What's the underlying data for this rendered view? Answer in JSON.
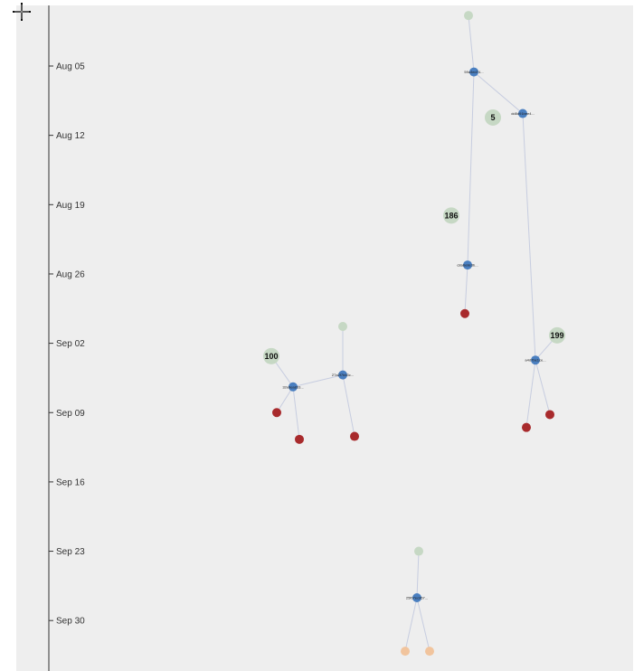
{
  "axis": {
    "ticks": [
      {
        "label": "Aug 05",
        "day": 0
      },
      {
        "label": "Aug 12",
        "day": 7
      },
      {
        "label": "Aug 19",
        "day": 14
      },
      {
        "label": "Aug 26",
        "day": 21
      },
      {
        "label": "Sep 02",
        "day": 28
      },
      {
        "label": "Sep 09",
        "day": 35
      },
      {
        "label": "Sep 16",
        "day": 42
      },
      {
        "label": "Sep 23",
        "day": 49
      },
      {
        "label": "Sep 30",
        "day": 56
      }
    ]
  },
  "colors": {
    "root": "#c6d8c4",
    "commit": "#4a7fc0",
    "terminal_red": "#a82a2c",
    "terminal_orange": "#f1c49d",
    "edge": "#c7cde0",
    "count_bubble": "#c6d8c4",
    "axis": "#333333",
    "panel": "#eeeeee"
  },
  "nodes": [
    {
      "id": "n1",
      "kind": "root",
      "day": -5.1
    },
    {
      "id": "n2",
      "kind": "commit",
      "day": 0.6,
      "label": "59a3ed74..."
    },
    {
      "id": "n3",
      "kind": "commit",
      "day": 4.8,
      "label": "dd8d91bee4..."
    },
    {
      "id": "n4",
      "kind": "count",
      "day": 5.2,
      "label": "5"
    },
    {
      "id": "n5",
      "kind": "count",
      "day": 15.1,
      "label": "186"
    },
    {
      "id": "n6",
      "kind": "commit",
      "day": 20.1,
      "label": "c8a6e8e3b..."
    },
    {
      "id": "n7",
      "kind": "terminal_red",
      "day": 25.0
    },
    {
      "id": "n8",
      "kind": "root",
      "day": 26.3
    },
    {
      "id": "n9",
      "kind": "count",
      "day": 27.2,
      "label": "199"
    },
    {
      "id": "n10",
      "kind": "count",
      "day": 29.3,
      "label": "100"
    },
    {
      "id": "n11",
      "kind": "commit",
      "day": 29.7,
      "label": "a4d7be1ce..."
    },
    {
      "id": "n12",
      "kind": "commit",
      "day": 31.2,
      "label": "27a2f7b63c..."
    },
    {
      "id": "n13",
      "kind": "commit",
      "day": 32.4,
      "label": "32e8ea833..."
    },
    {
      "id": "n14",
      "kind": "terminal_red",
      "day": 35.0
    },
    {
      "id": "n15",
      "kind": "terminal_red",
      "day": 35.2
    },
    {
      "id": "n16",
      "kind": "terminal_red",
      "day": 36.5
    },
    {
      "id": "n17",
      "kind": "terminal_red",
      "day": 37.4
    },
    {
      "id": "n18",
      "kind": "terminal_red",
      "day": 37.7
    },
    {
      "id": "n19",
      "kind": "root",
      "day": 49.0
    },
    {
      "id": "n20",
      "kind": "commit",
      "day": 53.7,
      "label": "25f07ecd67..."
    },
    {
      "id": "n21",
      "kind": "terminal_orange",
      "day": 59.1
    },
    {
      "id": "n22",
      "kind": "terminal_orange",
      "day": 59.1
    }
  ],
  "edges": [
    [
      "n1",
      "n2"
    ],
    [
      "n2",
      "n3"
    ],
    [
      "n2",
      "n6"
    ],
    [
      "n6",
      "n7"
    ],
    [
      "n3",
      "n11"
    ],
    [
      "n9",
      "n11"
    ],
    [
      "n11",
      "n16"
    ],
    [
      "n11",
      "n15"
    ],
    [
      "n8",
      "n12"
    ],
    [
      "n12",
      "n13"
    ],
    [
      "n10",
      "n13"
    ],
    [
      "n12",
      "n17"
    ],
    [
      "n13",
      "n14"
    ],
    [
      "n13",
      "n18"
    ],
    [
      "n19",
      "n20"
    ],
    [
      "n20",
      "n21"
    ],
    [
      "n20",
      "n22"
    ]
  ]
}
